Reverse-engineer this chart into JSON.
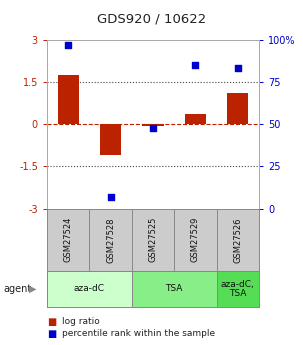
{
  "title": "GDS920 / 10622",
  "samples": [
    "GSM27524",
    "GSM27528",
    "GSM27525",
    "GSM27529",
    "GSM27526"
  ],
  "log_ratios": [
    1.75,
    -1.1,
    -0.07,
    0.35,
    1.1
  ],
  "percentile_ranks": [
    97,
    7,
    48,
    85,
    83
  ],
  "ylim_left": [
    -3,
    3
  ],
  "ylim_right": [
    0,
    100
  ],
  "yticks_left": [
    -3,
    -1.5,
    0,
    1.5,
    3
  ],
  "yticks_right": [
    0,
    25,
    50,
    75,
    100
  ],
  "yticklabels_left": [
    "-3",
    "-1.5",
    "0",
    "1.5",
    "3"
  ],
  "yticklabels_right": [
    "0",
    "25",
    "50",
    "75",
    "100%"
  ],
  "hlines_dotted": [
    -1.5,
    1.5
  ],
  "hline_dashed": 0,
  "bar_color": "#bb2200",
  "dot_color": "#0000cc",
  "bar_width": 0.5,
  "dot_size": 25,
  "background_color": "#ffffff",
  "agent_label": "agent",
  "legend_log": "log ratio",
  "legend_pct": "percentile rank within the sample",
  "gsm_bg": "#cccccc",
  "group_bounds": [
    [
      0,
      2,
      "aza-dC",
      "#ccffcc"
    ],
    [
      2,
      4,
      "TSA",
      "#88ee88"
    ],
    [
      4,
      5,
      "aza-dC,\nTSA",
      "#55dd55"
    ]
  ]
}
